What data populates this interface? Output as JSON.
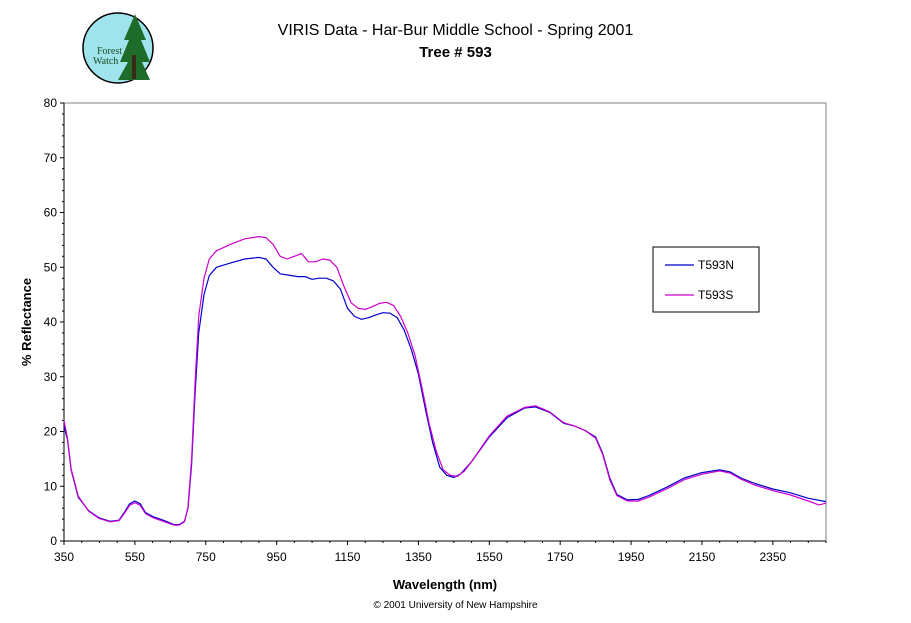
{
  "logo": {
    "text_line1": "Forest",
    "text_line2": "Watch"
  },
  "footer": "© 2001 University of New Hampshire",
  "colors": {
    "T593N": "#0000cc",
    "T593S": "#cc00cc",
    "logo_bg": "#9fe3ec"
  },
  "chart_data": {
    "type": "line",
    "title": "VIRIS Data - Har-Bur Middle School - Spring 2001",
    "subtitle": "Tree # 593",
    "xlabel": "Wavelength (nm)",
    "ylabel": "% Reflectance",
    "xlim": [
      350,
      2500
    ],
    "ylim": [
      0,
      80
    ],
    "xticks": [
      350,
      550,
      750,
      950,
      1150,
      1350,
      1550,
      1750,
      1950,
      2150,
      2350
    ],
    "yticks": [
      0,
      10,
      20,
      30,
      40,
      50,
      60,
      70,
      80
    ],
    "grid": false,
    "legend_position": "right",
    "series": [
      {
        "name": "T593N",
        "points": [
          [
            350,
            21
          ],
          [
            360,
            18.5
          ],
          [
            370,
            13
          ],
          [
            390,
            8
          ],
          [
            420,
            5.5
          ],
          [
            450,
            4.2
          ],
          [
            480,
            3.6
          ],
          [
            505,
            3.8
          ],
          [
            520,
            5.2
          ],
          [
            535,
            6.8
          ],
          [
            550,
            7.3
          ],
          [
            565,
            6.8
          ],
          [
            580,
            5.2
          ],
          [
            600,
            4.5
          ],
          [
            630,
            3.8
          ],
          [
            660,
            3.0
          ],
          [
            675,
            3.0
          ],
          [
            690,
            3.6
          ],
          [
            700,
            6
          ],
          [
            710,
            14
          ],
          [
            720,
            27
          ],
          [
            730,
            38
          ],
          [
            745,
            45
          ],
          [
            760,
            48.5
          ],
          [
            780,
            50
          ],
          [
            820,
            50.8
          ],
          [
            860,
            51.5
          ],
          [
            900,
            51.8
          ],
          [
            920,
            51.5
          ],
          [
            940,
            50
          ],
          [
            960,
            48.8
          ],
          [
            990,
            48.5
          ],
          [
            1010,
            48.3
          ],
          [
            1030,
            48.3
          ],
          [
            1050,
            47.8
          ],
          [
            1070,
            48
          ],
          [
            1090,
            48
          ],
          [
            1110,
            47.5
          ],
          [
            1130,
            46
          ],
          [
            1150,
            42.5
          ],
          [
            1170,
            41
          ],
          [
            1190,
            40.5
          ],
          [
            1210,
            40.8
          ],
          [
            1230,
            41.3
          ],
          [
            1250,
            41.7
          ],
          [
            1270,
            41.6
          ],
          [
            1290,
            40.8
          ],
          [
            1310,
            38.5
          ],
          [
            1330,
            35
          ],
          [
            1350,
            30.5
          ],
          [
            1370,
            24
          ],
          [
            1390,
            18
          ],
          [
            1410,
            13.5
          ],
          [
            1430,
            12
          ],
          [
            1450,
            11.6
          ],
          [
            1470,
            12.3
          ],
          [
            1500,
            14.5
          ],
          [
            1550,
            19
          ],
          [
            1600,
            22.5
          ],
          [
            1650,
            24.3
          ],
          [
            1680,
            24.5
          ],
          [
            1720,
            23.5
          ],
          [
            1760,
            21.5
          ],
          [
            1790,
            21
          ],
          [
            1820,
            20.2
          ],
          [
            1850,
            19
          ],
          [
            1870,
            16
          ],
          [
            1890,
            11.5
          ],
          [
            1910,
            8.5
          ],
          [
            1940,
            7.5
          ],
          [
            1970,
            7.6
          ],
          [
            2000,
            8.3
          ],
          [
            2050,
            9.8
          ],
          [
            2100,
            11.5
          ],
          [
            2150,
            12.5
          ],
          [
            2200,
            13
          ],
          [
            2230,
            12.6
          ],
          [
            2260,
            11.5
          ],
          [
            2300,
            10.5
          ],
          [
            2350,
            9.5
          ],
          [
            2400,
            8.8
          ],
          [
            2450,
            7.8
          ],
          [
            2500,
            7.2
          ]
        ]
      },
      {
        "name": "T593S",
        "points": [
          [
            350,
            22
          ],
          [
            360,
            18.8
          ],
          [
            370,
            13.2
          ],
          [
            390,
            8.2
          ],
          [
            420,
            5.4
          ],
          [
            450,
            4.1
          ],
          [
            480,
            3.5
          ],
          [
            505,
            3.7
          ],
          [
            520,
            5.0
          ],
          [
            535,
            6.5
          ],
          [
            550,
            7.0
          ],
          [
            565,
            6.5
          ],
          [
            580,
            5.0
          ],
          [
            600,
            4.3
          ],
          [
            630,
            3.6
          ],
          [
            660,
            2.9
          ],
          [
            675,
            2.9
          ],
          [
            690,
            3.5
          ],
          [
            700,
            6.2
          ],
          [
            710,
            15
          ],
          [
            720,
            29
          ],
          [
            730,
            41
          ],
          [
            745,
            48
          ],
          [
            760,
            51.5
          ],
          [
            780,
            53
          ],
          [
            820,
            54.2
          ],
          [
            860,
            55.2
          ],
          [
            900,
            55.6
          ],
          [
            920,
            55.4
          ],
          [
            940,
            54.2
          ],
          [
            960,
            52
          ],
          [
            980,
            51.5
          ],
          [
            1000,
            52
          ],
          [
            1020,
            52.5
          ],
          [
            1040,
            51
          ],
          [
            1060,
            51
          ],
          [
            1080,
            51.5
          ],
          [
            1100,
            51.3
          ],
          [
            1120,
            50
          ],
          [
            1140,
            46.5
          ],
          [
            1160,
            43.5
          ],
          [
            1180,
            42.5
          ],
          [
            1200,
            42.3
          ],
          [
            1220,
            42.8
          ],
          [
            1240,
            43.4
          ],
          [
            1260,
            43.6
          ],
          [
            1280,
            43
          ],
          [
            1300,
            41
          ],
          [
            1320,
            38
          ],
          [
            1340,
            34
          ],
          [
            1360,
            28
          ],
          [
            1380,
            21.5
          ],
          [
            1400,
            16.5
          ],
          [
            1420,
            13
          ],
          [
            1440,
            12
          ],
          [
            1460,
            11.8
          ],
          [
            1480,
            12.8
          ],
          [
            1500,
            14.5
          ],
          [
            1550,
            19.2
          ],
          [
            1600,
            22.8
          ],
          [
            1650,
            24.4
          ],
          [
            1680,
            24.7
          ],
          [
            1720,
            23.6
          ],
          [
            1760,
            21.6
          ],
          [
            1790,
            21
          ],
          [
            1820,
            20.2
          ],
          [
            1850,
            18.8
          ],
          [
            1870,
            15.8
          ],
          [
            1890,
            11.2
          ],
          [
            1910,
            8.3
          ],
          [
            1940,
            7.3
          ],
          [
            1970,
            7.3
          ],
          [
            2000,
            8.0
          ],
          [
            2050,
            9.5
          ],
          [
            2100,
            11.2
          ],
          [
            2150,
            12.2
          ],
          [
            2200,
            12.8
          ],
          [
            2230,
            12.4
          ],
          [
            2260,
            11.3
          ],
          [
            2300,
            10.2
          ],
          [
            2350,
            9.2
          ],
          [
            2400,
            8.4
          ],
          [
            2450,
            7.3
          ],
          [
            2480,
            6.6
          ],
          [
            2500,
            6.9
          ]
        ]
      }
    ]
  }
}
